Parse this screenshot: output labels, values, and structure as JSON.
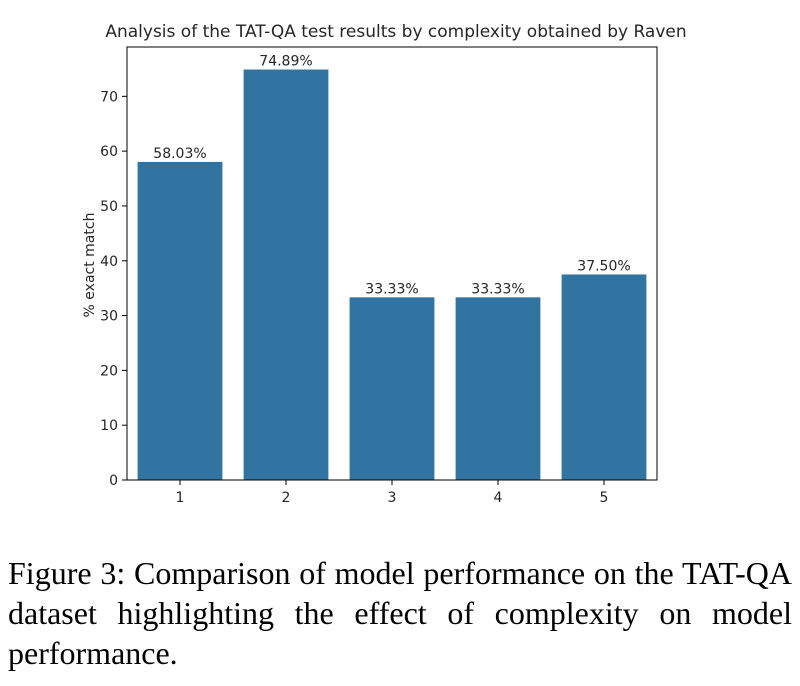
{
  "chart_data": {
    "type": "bar",
    "title": "Analysis of the TAT-QA test results by complexity obtained by Raven",
    "xlabel": "",
    "ylabel": "% exact match",
    "categories": [
      "1",
      "2",
      "3",
      "4",
      "5"
    ],
    "values": [
      58.03,
      74.89,
      33.33,
      33.33,
      37.5
    ],
    "data_labels": [
      "58.03%",
      "74.89%",
      "33.33%",
      "33.33%",
      "37.50%"
    ],
    "ylim": [
      0,
      79
    ],
    "yticks": [
      0,
      10,
      20,
      30,
      40,
      50,
      60,
      70
    ],
    "grid": false,
    "legend": "none",
    "bar_color": "#3274a1"
  },
  "caption": {
    "text": "Figure 3: Comparison of model performance on the TAT-QA dataset highlighting the effect of complexity on model performance."
  }
}
